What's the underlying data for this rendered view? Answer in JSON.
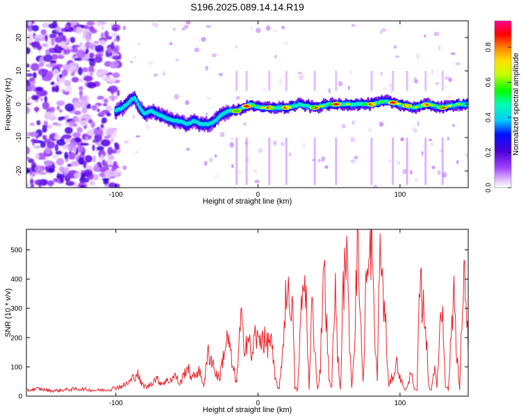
{
  "chart_data": [
    {
      "type": "heatmap",
      "title": "S196.2025.089.14.14.R19",
      "xlabel": "Height of straight line (km)",
      "ylabel": "Frequency (Hz)",
      "xlim": [
        -163,
        148
      ],
      "ylim": [
        -25,
        25
      ],
      "x_ticks": [
        -100,
        0,
        100
      ],
      "y_ticks": [
        20,
        10,
        0,
        -10,
        -20
      ],
      "colorbar": {
        "label": "Normalized spectral amplitude",
        "ticks": [
          0.0,
          0.2,
          0.4,
          0.6,
          0.8
        ],
        "range": [
          0,
          0.95
        ],
        "colormap": "rainbow: white-violet-purple-blue-cyan-green-yellow-orange-red-magenta"
      },
      "ridge": {
        "description": "Frequency ridge (Hz) vs height (km)",
        "x": [
          -100,
          -95,
          -90,
          -87,
          -83,
          -80,
          -75,
          -70,
          -65,
          -60,
          -55,
          -50,
          -45,
          -40,
          -35,
          -30,
          -28,
          -25,
          -20,
          -15,
          -10,
          -5,
          0,
          10,
          20,
          30,
          40,
          50,
          60,
          70,
          80,
          90,
          100,
          110,
          120,
          130,
          140,
          148
        ],
        "y": [
          -2,
          -1,
          1,
          2,
          -1,
          -3,
          -2,
          -3,
          -4,
          -5,
          -5,
          -6,
          -5,
          -6,
          -6,
          -5,
          -4,
          -3,
          -2,
          -2,
          -1,
          0,
          -1,
          -1,
          -1,
          0,
          -1,
          0,
          0,
          0,
          0,
          1,
          0,
          -1,
          0,
          -1,
          0,
          0
        ],
        "peak_heights": [
          -15,
          -8,
          8,
          20,
          40,
          55,
          80,
          95,
          105,
          118,
          130
        ]
      }
    },
    {
      "type": "line",
      "xlabel": "Height of straight line (km)",
      "ylabel": "SNR (10 * v/v)",
      "xlim": [
        -163,
        148
      ],
      "ylim": [
        0,
        570
      ],
      "x_ticks": [
        -100,
        0,
        100
      ],
      "y_ticks": [
        0,
        100,
        200,
        300,
        400,
        500
      ],
      "color": "#e8202a",
      "series": [
        {
          "x": [
            -163,
            -155,
            -145,
            -135,
            -125,
            -115,
            -105,
            -100,
            -95,
            -90,
            -85,
            -82,
            -78,
            -72,
            -68,
            -62,
            -58,
            -55,
            -50,
            -46,
            -42,
            -38,
            -35,
            -32,
            -30,
            -27,
            -24,
            -21,
            -18,
            -15,
            -12,
            -10,
            -7,
            -4,
            -2,
            0,
            3,
            6,
            9,
            12,
            15,
            18,
            20,
            22,
            24,
            26,
            28,
            30,
            32,
            34,
            36,
            38,
            40,
            42,
            44,
            46,
            48,
            50,
            52,
            54,
            56,
            58,
            60,
            62,
            64,
            66,
            68,
            70,
            72,
            74,
            76,
            78,
            80,
            82,
            84,
            86,
            88,
            90,
            92,
            94,
            96,
            98,
            100,
            102,
            104,
            106,
            108,
            110,
            112,
            114,
            116,
            118,
            120,
            122,
            124,
            126,
            128,
            130,
            132,
            134,
            136,
            138,
            140,
            142,
            144,
            146,
            148
          ],
          "y": [
            20,
            25,
            18,
            22,
            25,
            20,
            22,
            30,
            35,
            50,
            80,
            40,
            30,
            60,
            45,
            55,
            70,
            40,
            100,
            60,
            90,
            40,
            150,
            120,
            80,
            60,
            150,
            200,
            100,
            50,
            260,
            180,
            200,
            130,
            220,
            180,
            210,
            170,
            200,
            60,
            20,
            200,
            390,
            310,
            350,
            30,
            20,
            250,
            380,
            340,
            20,
            310,
            170,
            20,
            100,
            460,
            300,
            50,
            30,
            400,
            150,
            20,
            350,
            520,
            260,
            30,
            200,
            540,
            300,
            40,
            380,
            420,
            560,
            200,
            70,
            530,
            350,
            230,
            30,
            60,
            80,
            120,
            60,
            40,
            20,
            40,
            100,
            20,
            20,
            380,
            320,
            260,
            40,
            20,
            100,
            30,
            240,
            300,
            40,
            20,
            200,
            380,
            150,
            20,
            330,
            410,
            150
          ]
        }
      ]
    }
  ]
}
